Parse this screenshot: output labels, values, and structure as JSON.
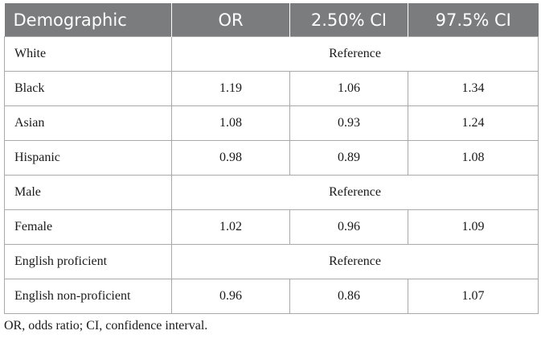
{
  "table": {
    "headers": [
      "Demographic",
      "OR",
      "2.50% CI",
      "97.5% CI"
    ],
    "rows": [
      {
        "label": "White",
        "merged": "Reference"
      },
      {
        "label": "Black",
        "cells": [
          "1.19",
          "1.06",
          "1.34"
        ]
      },
      {
        "label": "Asian",
        "cells": [
          "1.08",
          "0.93",
          "1.24"
        ]
      },
      {
        "label": "Hispanic",
        "cells": [
          "0.98",
          "0.89",
          "1.08"
        ]
      },
      {
        "label": "Male",
        "merged": "Reference"
      },
      {
        "label": "Female",
        "cells": [
          "1.02",
          "0.96",
          "1.09"
        ]
      },
      {
        "label": "English proficient",
        "merged": "Reference"
      },
      {
        "label": "English non-proficient",
        "cells": [
          "0.96",
          "0.86",
          "1.07"
        ]
      }
    ]
  },
  "footnote": "OR, odds ratio; CI, confidence interval.",
  "colors": {
    "header_background": "#7b7c7e",
    "header_text": "#ffffff",
    "grid_line": "#a9a9a9"
  }
}
